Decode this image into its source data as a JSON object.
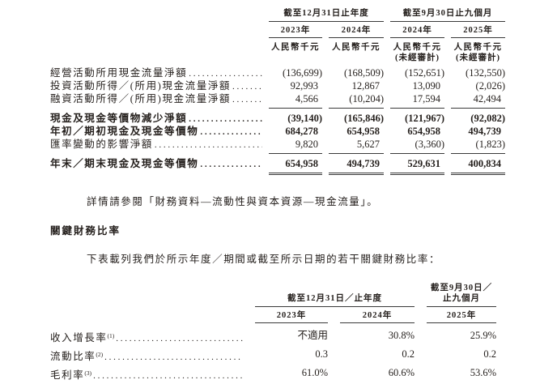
{
  "colors": {
    "text": "#241f1c",
    "rule": "#3a3a3a",
    "background": "#ffffff"
  },
  "cash_flow_table": {
    "column_groups": [
      {
        "label": "截至12月31日止年度"
      },
      {
        "label": "截至9月30日止九個月"
      }
    ],
    "columns": [
      {
        "year": "2023年",
        "unit": "人民幣千元",
        "note": ""
      },
      {
        "year": "2024年",
        "unit": "人民幣千元",
        "note": ""
      },
      {
        "year": "2024年",
        "unit": "人民幣千元",
        "note": "(未經審計)"
      },
      {
        "year": "2025年",
        "unit": "人民幣千元",
        "note": "(未經審計)"
      }
    ],
    "rows": [
      {
        "label": "經營活動所用現金流量淨額",
        "bold": false,
        "rule_after": false,
        "double_rule_after": false,
        "values": [
          "(136,699)",
          "(168,509)",
          "(152,651)",
          "(132,550)"
        ]
      },
      {
        "label": "投資活動所得／(所用)現金流量淨額",
        "bold": false,
        "rule_after": false,
        "double_rule_after": false,
        "values": [
          "92,993",
          "12,867",
          "13,090",
          "(2,026)"
        ]
      },
      {
        "label": "融資活動所得／(所用)現金流量淨額",
        "bold": false,
        "rule_after": true,
        "double_rule_after": false,
        "values": [
          "4,566",
          "(10,204)",
          "17,594",
          "42,494"
        ]
      },
      {
        "label": "現金及現金等價物減少淨額",
        "bold": true,
        "rule_after": false,
        "double_rule_after": false,
        "values": [
          "(39,140)",
          "(165,846)",
          "(121,967)",
          "(92,082)"
        ]
      },
      {
        "label": "年初／期初現金及現金等價物",
        "bold": true,
        "rule_after": false,
        "double_rule_after": false,
        "values": [
          "684,278",
          "654,958",
          "654,958",
          "494,739"
        ]
      },
      {
        "label": "匯率變動的影響淨額",
        "bold": false,
        "rule_after": true,
        "double_rule_after": false,
        "values": [
          "9,820",
          "5,627",
          "(3,360)",
          "(1,823)"
        ]
      },
      {
        "label": "年末／期末現金及現金等價物",
        "bold": true,
        "rule_after": false,
        "double_rule_after": true,
        "values": [
          "654,958",
          "494,739",
          "529,631",
          "400,834"
        ]
      }
    ]
  },
  "note_paragraph": "詳情請參閱「財務資料—流動性與資本資源—現金流量」。",
  "section_heading": "關鍵財務比率",
  "intro_paragraph": "下表載列我們於所示年度／期間或截至所示日期的若干關鍵財務比率：",
  "ratio_table": {
    "column_groups": [
      {
        "label": "截至12月31日／止年度",
        "label_line2": ""
      },
      {
        "label": "截至9月30日／",
        "label_line2": "止九個月"
      }
    ],
    "columns": [
      {
        "year": "2023年"
      },
      {
        "year": "2024年"
      },
      {
        "year": "2025年"
      }
    ],
    "rows": [
      {
        "label": "收入增長率",
        "superscript": "(1)",
        "values": [
          "不適用",
          "30.8%",
          "25.9%"
        ]
      },
      {
        "label": "流動比率",
        "superscript": "(2)",
        "values": [
          "0.3",
          "0.2",
          "0.2"
        ]
      },
      {
        "label": "毛利率",
        "superscript": "(3)",
        "values": [
          "61.0%",
          "60.6%",
          "53.6%"
        ]
      }
    ]
  }
}
